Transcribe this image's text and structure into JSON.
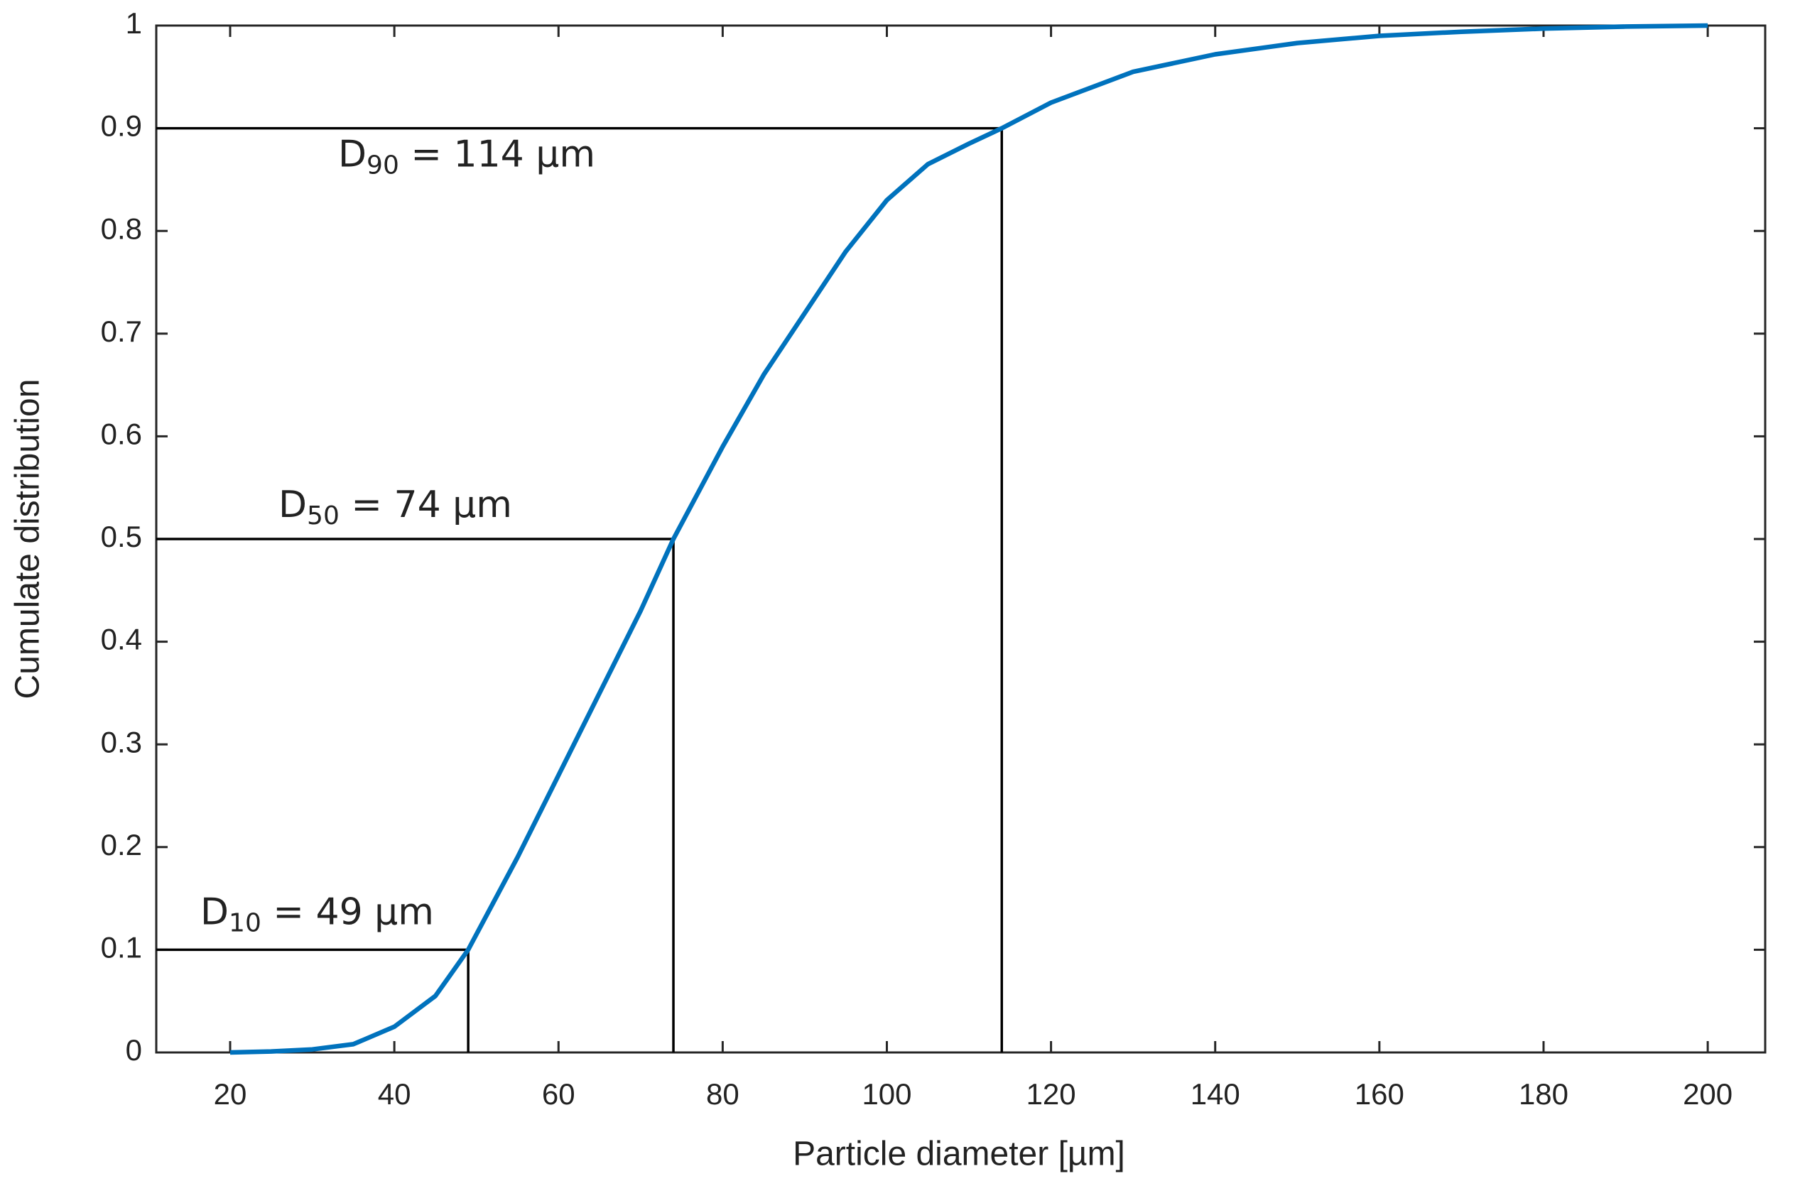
{
  "chart_data": {
    "type": "line",
    "xlabel": "Particle diameter [µm]",
    "ylabel": "Cumulate distribution",
    "xlim": [
      11,
      207
    ],
    "ylim": [
      0,
      1
    ],
    "xticks": [
      20,
      40,
      60,
      80,
      100,
      120,
      140,
      160,
      180,
      200
    ],
    "yticks": [
      0,
      0.1,
      0.2,
      0.3,
      0.4,
      0.5,
      0.6,
      0.7,
      0.8,
      0.9,
      1
    ],
    "series": [
      {
        "color": "#0072bd",
        "x": [
          20,
          25,
          30,
          35,
          40,
          45,
          49,
          55,
          60,
          65,
          70,
          74,
          80,
          85,
          90,
          95,
          100,
          105,
          110,
          114,
          120,
          130,
          140,
          150,
          160,
          170,
          180,
          190,
          200
        ],
        "values": [
          0,
          0.001,
          0.003,
          0.008,
          0.025,
          0.055,
          0.1,
          0.19,
          0.27,
          0.35,
          0.43,
          0.5,
          0.59,
          0.66,
          0.72,
          0.78,
          0.83,
          0.865,
          0.885,
          0.9,
          0.925,
          0.955,
          0.972,
          0.983,
          0.99,
          0.994,
          0.997,
          0.999,
          1
        ]
      }
    ],
    "annotations": [
      {
        "label": "D",
        "subscript": "10",
        "text": " = 49 µm",
        "x": 49,
        "y": 0.1
      },
      {
        "label": "D",
        "subscript": "50",
        "text": " = 74 µm",
        "x": 74,
        "y": 0.5
      },
      {
        "label": "D",
        "subscript": "90",
        "text": " = 114 µm",
        "x": 114,
        "y": 0.9
      }
    ]
  }
}
